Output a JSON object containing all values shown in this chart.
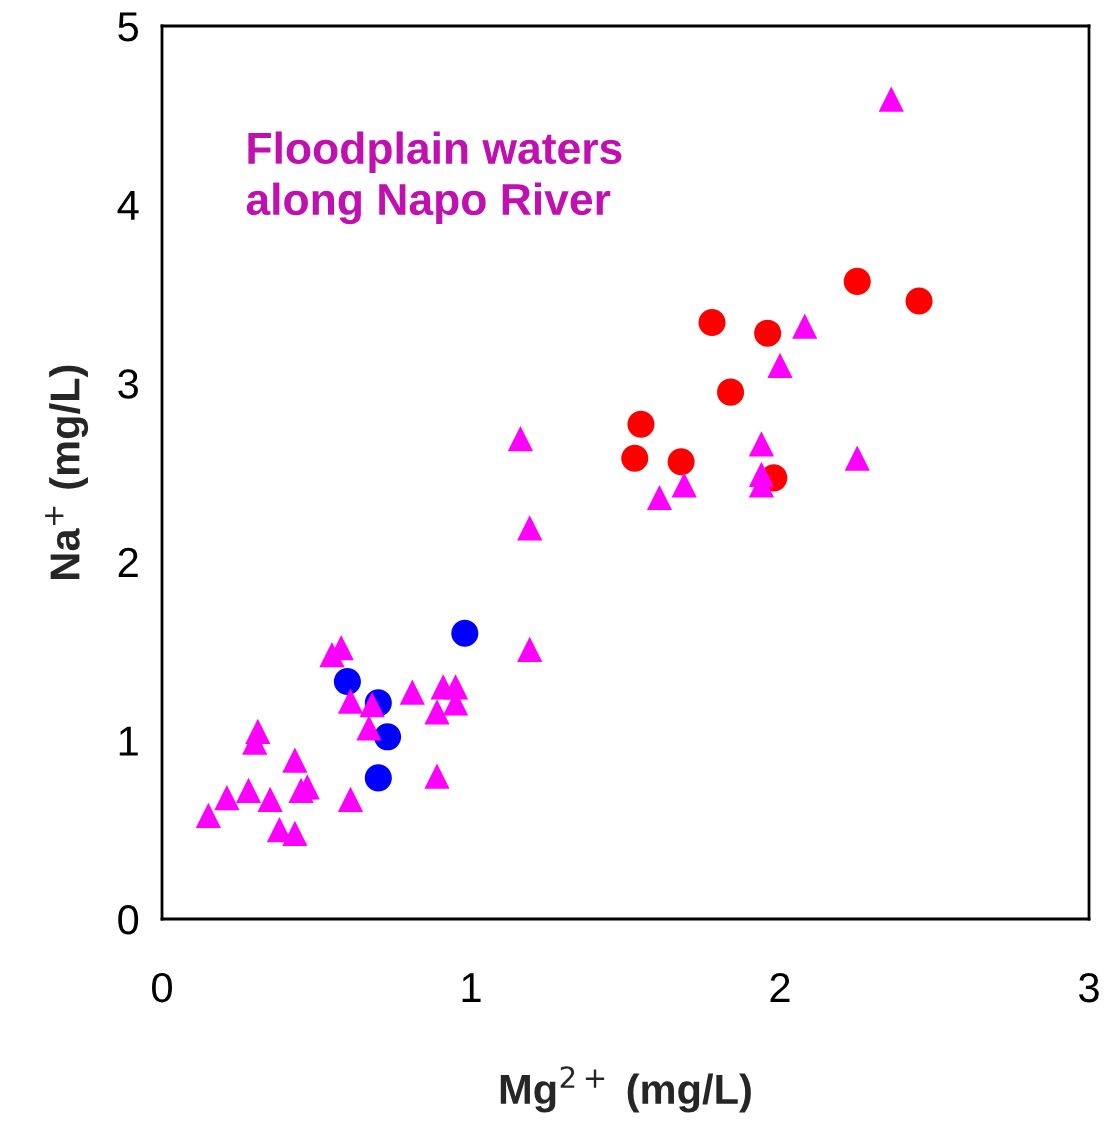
{
  "chart_data": {
    "type": "scatter",
    "xlabel": "Mg$^{2+}$ (mg/L)",
    "ylabel": "Na$^{+}$ (mg/L)",
    "xlim": [
      0,
      3
    ],
    "ylim": [
      0,
      5
    ],
    "xticks": [
      0,
      1,
      2,
      3
    ],
    "yticks": [
      0,
      1,
      2,
      3,
      4,
      5
    ],
    "grid": false,
    "legend": false,
    "annotations": [
      "Floodplain waters\nalong Napo River"
    ],
    "series": [
      {
        "color": "#ff00ff",
        "marker": "triangle",
        "x": [
          2.36,
          2.08,
          2.0,
          1.16,
          1.94,
          2.25,
          1.94,
          1.94,
          1.69,
          1.61,
          1.19,
          1.19,
          0.55,
          0.58,
          0.61,
          0.68,
          0.67,
          0.81,
          0.91,
          0.95,
          0.95,
          0.89,
          0.89,
          0.31,
          0.3,
          0.43,
          0.15,
          0.21,
          0.28,
          0.35,
          0.45,
          0.47,
          0.61,
          0.38,
          0.43
        ],
        "values": [
          4.59,
          3.32,
          3.1,
          2.69,
          2.66,
          2.58,
          2.49,
          2.43,
          2.43,
          2.36,
          2.19,
          1.51,
          1.48,
          1.52,
          1.22,
          1.2,
          1.07,
          1.27,
          1.3,
          1.3,
          1.21,
          1.16,
          0.8,
          1.05,
          0.99,
          0.89,
          0.58,
          0.68,
          0.72,
          0.67,
          0.72,
          0.74,
          0.67,
          0.5,
          0.48
        ]
      },
      {
        "color": "#ff0000",
        "marker": "circle",
        "x": [
          2.25,
          2.45,
          1.78,
          1.96,
          1.84,
          1.55,
          1.53,
          1.68,
          1.98
        ],
        "values": [
          3.57,
          3.46,
          3.34,
          3.28,
          2.95,
          2.77,
          2.58,
          2.56,
          2.47
        ]
      },
      {
        "color": "#0000ff",
        "marker": "circle",
        "x": [
          0.98,
          0.6,
          0.7,
          0.73,
          0.7
        ],
        "values": [
          1.6,
          1.33,
          1.21,
          1.02,
          0.79
        ]
      }
    ]
  }
}
